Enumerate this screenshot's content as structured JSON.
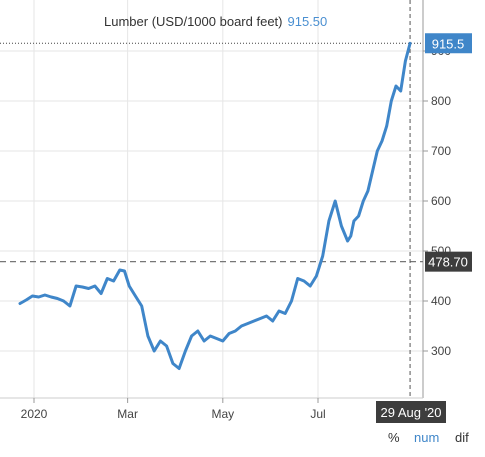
{
  "chart_data": {
    "type": "line",
    "title": "Lumber (USD/1000 board feet)",
    "title_value": "915.50",
    "series": [
      {
        "name": "Lumber",
        "color": "#3f86c9",
        "x": [
          "2019-12-23",
          "2019-12-27",
          "2019-12-31",
          "2020-01-04",
          "2020-01-08",
          "2020-01-12",
          "2020-01-16",
          "2020-01-20",
          "2020-01-24",
          "2020-01-28",
          "2020-02-01",
          "2020-02-05",
          "2020-02-09",
          "2020-02-13",
          "2020-02-17",
          "2020-02-21",
          "2020-02-25",
          "2020-02-28",
          "2020-03-02",
          "2020-03-06",
          "2020-03-10",
          "2020-03-14",
          "2020-03-18",
          "2020-03-22",
          "2020-03-26",
          "2020-03-30",
          "2020-04-03",
          "2020-04-07",
          "2020-04-11",
          "2020-04-15",
          "2020-04-19",
          "2020-04-23",
          "2020-04-27",
          "2020-05-01",
          "2020-05-05",
          "2020-05-09",
          "2020-05-13",
          "2020-05-17",
          "2020-05-21",
          "2020-05-25",
          "2020-05-29",
          "2020-06-02",
          "2020-06-06",
          "2020-06-10",
          "2020-06-14",
          "2020-06-18",
          "2020-06-22",
          "2020-06-26",
          "2020-06-30",
          "2020-07-04",
          "2020-07-08",
          "2020-07-12",
          "2020-07-16",
          "2020-07-20",
          "2020-07-22",
          "2020-07-24",
          "2020-07-27",
          "2020-07-30",
          "2020-08-02",
          "2020-08-05",
          "2020-08-08",
          "2020-08-11",
          "2020-08-14",
          "2020-08-17",
          "2020-08-20",
          "2020-08-23",
          "2020-08-26",
          "2020-08-29"
        ],
        "values": [
          395,
          402,
          410,
          408,
          412,
          408,
          405,
          400,
          390,
          430,
          428,
          425,
          430,
          415,
          445,
          440,
          462,
          460,
          430,
          410,
          390,
          330,
          300,
          320,
          310,
          275,
          265,
          300,
          330,
          340,
          320,
          330,
          325,
          320,
          335,
          340,
          350,
          355,
          360,
          365,
          370,
          360,
          380,
          375,
          400,
          445,
          440,
          430,
          450,
          490,
          560,
          600,
          550,
          520,
          530,
          560,
          570,
          600,
          620,
          660,
          700,
          720,
          750,
          800,
          830,
          820,
          880,
          915.5
        ]
      }
    ],
    "x_ticks": [
      {
        "date": "2020-01-01",
        "label": "2020"
      },
      {
        "date": "2020-03-01",
        "label": "Mar"
      },
      {
        "date": "2020-05-01",
        "label": "May"
      },
      {
        "date": "2020-07-01",
        "label": "Jul"
      }
    ],
    "y_ticks": [
      300,
      400,
      500,
      600,
      700,
      800,
      900
    ],
    "y_axis_position": "right",
    "last_value_label": "915.5",
    "reference_line": {
      "value": 478.7,
      "label": "478.70"
    },
    "crosshair_date_label": "29 Aug '20",
    "grid": true
  },
  "controls": {
    "percent": "%",
    "num": "num",
    "dif": "dif"
  },
  "colors": {
    "line": "#3f86c9",
    "tag_blue": "#3f86c9",
    "tag_dark": "#3d3d3d",
    "grid": "#e6e6e6",
    "num_active": "#3f86c9"
  }
}
